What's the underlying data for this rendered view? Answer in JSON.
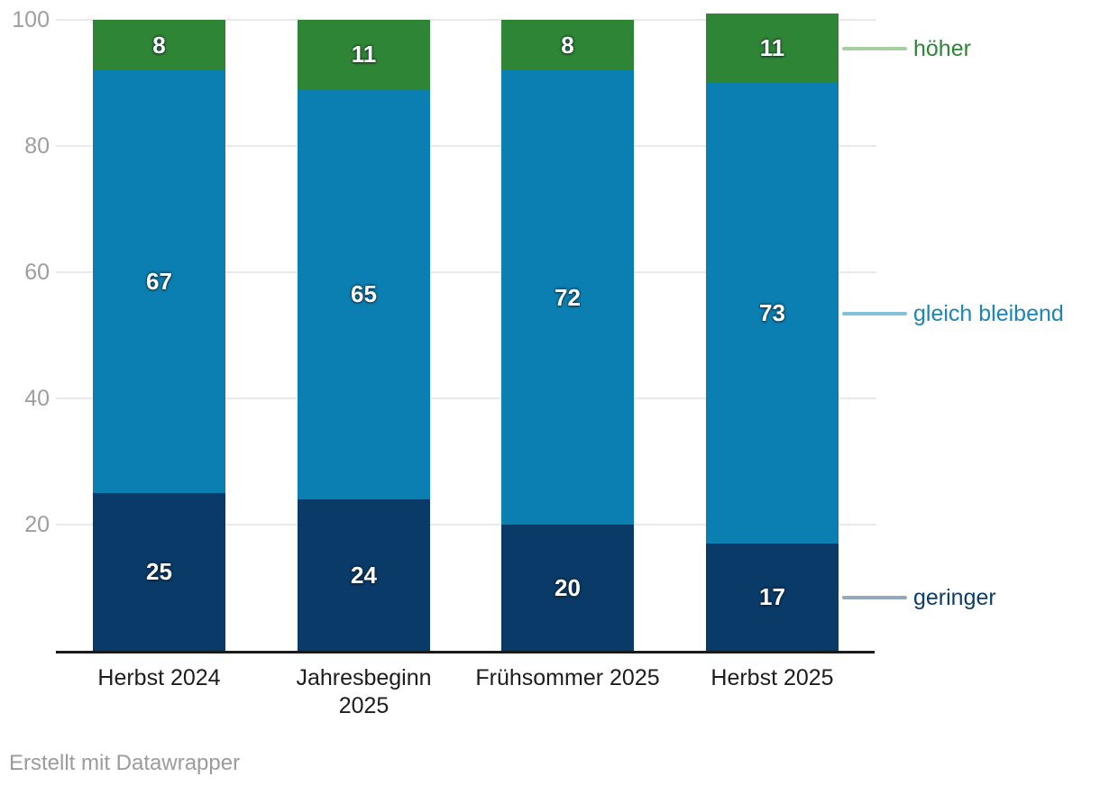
{
  "chart_data": {
    "type": "bar",
    "subtype": "stacked-column",
    "categories": [
      "Herbst 2024",
      "Jahresbeginn\n2025",
      "Frühsommer 2025",
      "Herbst 2025"
    ],
    "series": [
      {
        "name": "geringer",
        "values": [
          25,
          24,
          20,
          17
        ],
        "color": "#0a3a67",
        "legend_line_color": "#94a7bb",
        "legend_text_color": "#0f3d6b"
      },
      {
        "name": "gleich bleibend",
        "values": [
          67,
          65,
          72,
          73
        ],
        "color": "#0c7fb2",
        "legend_line_color": "#85c0de",
        "legend_text_color": "#1d84b5"
      },
      {
        "name": "höher",
        "values": [
          8,
          11,
          8,
          11
        ],
        "color": "#2e8535",
        "legend_line_color": "#a8cfa2",
        "legend_text_color": "#2e8535"
      }
    ],
    "y_ticks": [
      20,
      40,
      60,
      80,
      100
    ],
    "ylim": [
      0,
      100
    ],
    "grid": true,
    "legend_position": "right",
    "footer": "Erstellt mit Datawrapper"
  },
  "colors": {
    "background": "#ffffff",
    "grid": "#e9e9e9",
    "axis_line": "#1a1a1a",
    "tick_label": "#9e9e9e",
    "category_label": "#1d1d1d",
    "value_label": "#ffffff",
    "footer": "#9b9b9b"
  }
}
